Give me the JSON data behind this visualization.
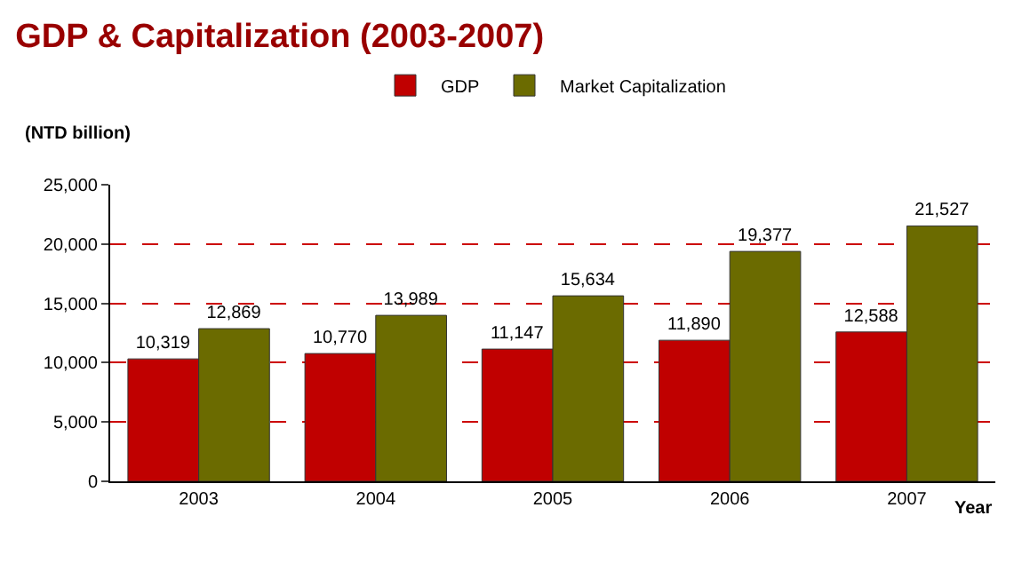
{
  "chart_data": {
    "type": "bar",
    "title": "GDP & Capitalization (2003-2007)",
    "ylabel": "(NTD billion)",
    "xlabel": "Year",
    "categories": [
      "2003",
      "2004",
      "2005",
      "2006",
      "2007"
    ],
    "series": [
      {
        "name": "GDP",
        "color": "#c00000",
        "values": [
          10319,
          10770,
          11147,
          11890,
          12588
        ],
        "value_labels": [
          "10,319",
          "10,770",
          "11,147",
          "11,890",
          "12,588"
        ]
      },
      {
        "name": "Market Capitalization",
        "color": "#6b6b00",
        "values": [
          12869,
          13989,
          15634,
          19377,
          21527
        ],
        "value_labels": [
          "12,869",
          "13,989",
          "15,634",
          "19,377",
          "21,527"
        ]
      }
    ],
    "ylim": [
      0,
      25000
    ],
    "yticks": [
      0,
      {
        "value": 5000,
        "label": "5,000"
      },
      {
        "value": 10000,
        "label": "10,000"
      },
      {
        "value": 15000,
        "label": "15,000"
      },
      {
        "value": 20000,
        "label": "20,000"
      },
      {
        "value": 25000,
        "label": "25,000"
      }
    ],
    "grid": "y",
    "legend": "top"
  }
}
